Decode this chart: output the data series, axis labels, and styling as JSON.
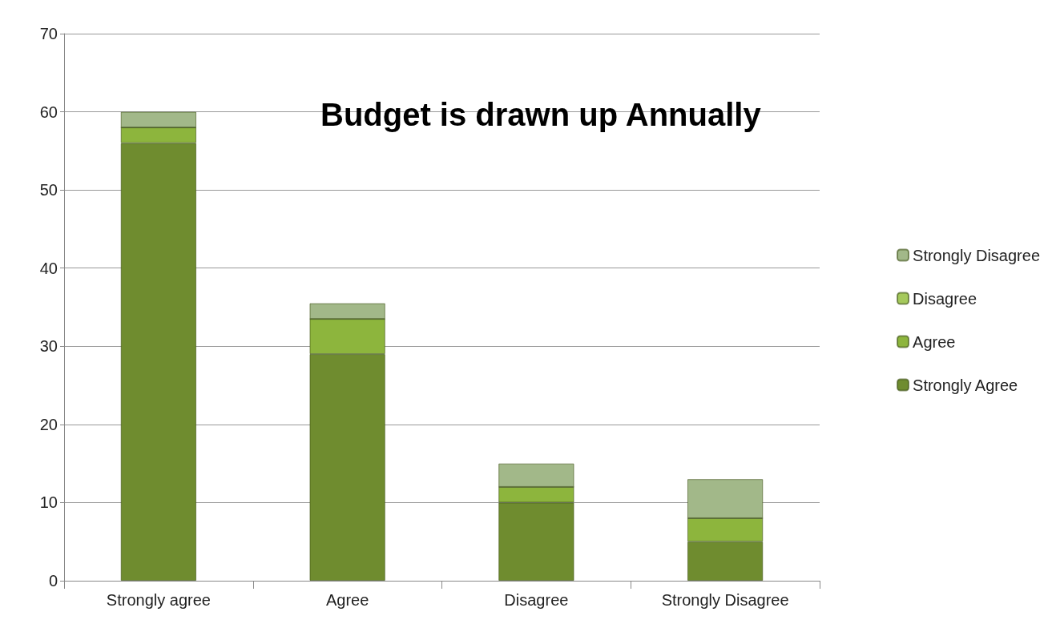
{
  "chart_data": {
    "type": "bar",
    "title": "Budget is drawn up Annually",
    "categories": [
      "Strongly agree",
      "Agree",
      "Disagree",
      "Strongly Disagree"
    ],
    "stacked": true,
    "series": [
      {
        "name": "Strongly Agree",
        "color": "#6f8c2f",
        "values": [
          56,
          29,
          10,
          5
        ]
      },
      {
        "name": "Agree",
        "color": "#8db53d",
        "values": [
          2,
          4.5,
          2,
          3
        ]
      },
      {
        "name": "Disagree",
        "color": "#a5c95c",
        "values": [
          0,
          0,
          0,
          0
        ]
      },
      {
        "name": "Strongly Disagree",
        "color": "#a2b889",
        "values": [
          2,
          2,
          3,
          5
        ]
      }
    ],
    "ylim": [
      0,
      70
    ],
    "yticks": [
      0,
      10,
      20,
      30,
      40,
      50,
      60,
      70
    ],
    "grid": "y",
    "legend": "right"
  }
}
